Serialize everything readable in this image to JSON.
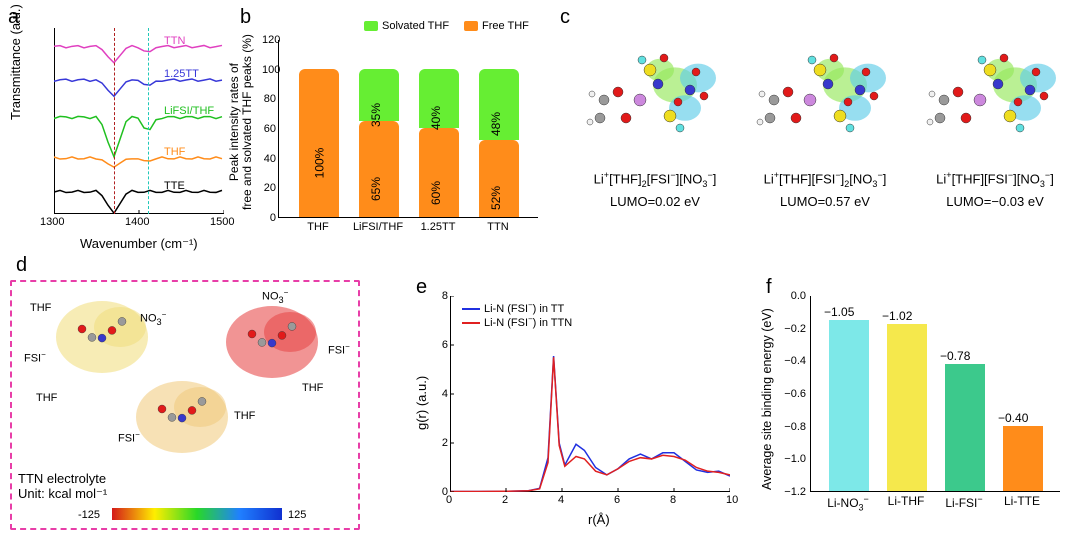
{
  "a": {
    "label": "a",
    "xlabel": "Wavenumber (cm⁻¹)",
    "ylabel": "Transmittance (a.u.)",
    "xlim": [
      1300,
      1500
    ],
    "xticks": [
      1300,
      1400,
      1500
    ],
    "vlines": [
      {
        "x": 1370,
        "color": "#b02020",
        "dash": "3,3"
      },
      {
        "x": 1410,
        "color": "#20c8b8",
        "dash": "3,3"
      }
    ],
    "traces": [
      {
        "name": "TTN",
        "color": "#e040c0",
        "offset": 0.1,
        "dip_depth": 0.09
      },
      {
        "name": "1.25TT",
        "color": "#3838d8",
        "offset": 0.28,
        "dip_depth": 0.09
      },
      {
        "name": "LiFSI/THF",
        "color": "#20c020",
        "offset": 0.48,
        "dip_depth": 0.22
      },
      {
        "name": "THF",
        "color": "#ff8c1a",
        "offset": 0.7,
        "dip_depth": 0.05
      },
      {
        "name": "TTE",
        "color": "#000000",
        "offset": 0.88,
        "dip_depth": 0.12
      }
    ]
  },
  "b": {
    "label": "b",
    "ylabel": "Peak intensity rates of\nfree and solvated THF peaks (%)",
    "ylim": [
      0,
      120
    ],
    "ytick_step": 20,
    "categories": [
      "THF",
      "LiFSI/THF",
      "1.25TT",
      "TTN"
    ],
    "series": [
      {
        "name": "Free THF",
        "color": "#ff8c1a",
        "values": [
          100,
          65,
          60,
          52
        ]
      },
      {
        "name": "Solvated THF",
        "color": "#66ee33",
        "values": [
          0,
          35,
          40,
          48
        ]
      }
    ],
    "bar_width": 0.55,
    "bar_radius": 6
  },
  "c": {
    "label": "c",
    "structures": [
      {
        "formula_html": "Li<sup>+</sup>[THF]<sub>2</sub>[FSI<sup>−</sup>][NO<sub>3</sub><sup>−</sup>]",
        "lumo": 0.02
      },
      {
        "formula_html": "Li<sup>+</sup>[THF][FSI<sup>−</sup>]<sub>2</sub>[NO<sub>3</sub><sup>−</sup>]",
        "lumo": 0.57
      },
      {
        "formula_html": "Li<sup>+</sup>[THF][FSI<sup>−</sup>][NO<sub>3</sub><sup>−</sup>]",
        "lumo": -0.03
      }
    ],
    "lumo_prefix": "LUMO=",
    "lumo_suffix": " eV",
    "orbital_colors": {
      "positive": "#95e85a",
      "negative": "#5fcce8"
    },
    "atom_colors": {
      "C": "#9a9a9a",
      "H": "#f0f0f0",
      "O": "#e21a1a",
      "N": "#3838cc",
      "S": "#eedd20",
      "F": "#60e0e0",
      "Li": "#cc88dd"
    }
  },
  "d": {
    "label": "d",
    "system_label": "TTN electrolyte",
    "unit_label": "Unit: kcal mol⁻¹",
    "colorbar": {
      "min": -125,
      "max": 125,
      "gradient": [
        "#d41a1a",
        "#ffee00",
        "#28d828",
        "#2080ff",
        "#1030d0"
      ]
    },
    "annot": [
      "THF",
      "FSI⁻",
      "NO₃⁻",
      "THF",
      "FSI⁻",
      "THF",
      "NO₃⁻",
      "FSI⁻",
      "THF"
    ],
    "border_color": "#e83ea8"
  },
  "e": {
    "label": "e",
    "xlabel": "r(Å)",
    "ylabel": "g(r) (a.u.)",
    "xlim": [
      0,
      10
    ],
    "xtick_step": 2,
    "ylim": [
      0,
      8
    ],
    "ytick_step": 2,
    "series": [
      {
        "name": "Li-N (FSI⁻) in TT",
        "color": "#2030e0",
        "points": [
          [
            0,
            0.02
          ],
          [
            1,
            0.02
          ],
          [
            2,
            0.03
          ],
          [
            2.8,
            0.05
          ],
          [
            3.2,
            0.15
          ],
          [
            3.5,
            1.4
          ],
          [
            3.7,
            5.55
          ],
          [
            3.9,
            2.0
          ],
          [
            4.1,
            1.1
          ],
          [
            4.5,
            1.95
          ],
          [
            4.8,
            1.7
          ],
          [
            5.2,
            1.0
          ],
          [
            5.6,
            0.7
          ],
          [
            6.0,
            0.95
          ],
          [
            6.4,
            1.35
          ],
          [
            6.8,
            1.55
          ],
          [
            7.2,
            1.35
          ],
          [
            7.6,
            1.6
          ],
          [
            8.0,
            1.6
          ],
          [
            8.4,
            1.25
          ],
          [
            8.8,
            0.9
          ],
          [
            9.2,
            0.8
          ],
          [
            9.6,
            0.85
          ],
          [
            10,
            0.65
          ]
        ]
      },
      {
        "name": "Li-N (FSI⁻) in TTN",
        "color": "#e02020",
        "points": [
          [
            0,
            0.02
          ],
          [
            1,
            0.02
          ],
          [
            2,
            0.03
          ],
          [
            2.8,
            0.05
          ],
          [
            3.2,
            0.13
          ],
          [
            3.5,
            1.2
          ],
          [
            3.7,
            5.5
          ],
          [
            3.9,
            1.9
          ],
          [
            4.1,
            1.05
          ],
          [
            4.5,
            1.45
          ],
          [
            4.8,
            1.35
          ],
          [
            5.2,
            0.85
          ],
          [
            5.6,
            0.7
          ],
          [
            6.0,
            0.95
          ],
          [
            6.4,
            1.25
          ],
          [
            6.8,
            1.4
          ],
          [
            7.2,
            1.35
          ],
          [
            7.6,
            1.5
          ],
          [
            8.0,
            1.45
          ],
          [
            8.4,
            1.3
          ],
          [
            8.8,
            1.0
          ],
          [
            9.2,
            0.85
          ],
          [
            9.6,
            0.8
          ],
          [
            10,
            0.7
          ]
        ]
      }
    ]
  },
  "f": {
    "label": "f",
    "ylabel": "Average site binding energy (eV)",
    "ylim": [
      0.0,
      -1.2
    ],
    "yticks": [
      -1.2,
      -1.0,
      -0.8,
      -0.6,
      -0.4,
      -0.2,
      0.0
    ],
    "categories_html": [
      "Li-NO<sub>3</sub><sup>−</sup>",
      "Li-THF",
      "Li-FSI<sup>−</sup>",
      "Li-TTE"
    ],
    "values": [
      -1.05,
      -1.02,
      -0.78,
      -0.4
    ],
    "bar_colors": [
      "#7de8e8",
      "#f5e84c",
      "#3cc98c",
      "#ff8c1a"
    ],
    "bar_width": 0.6
  }
}
